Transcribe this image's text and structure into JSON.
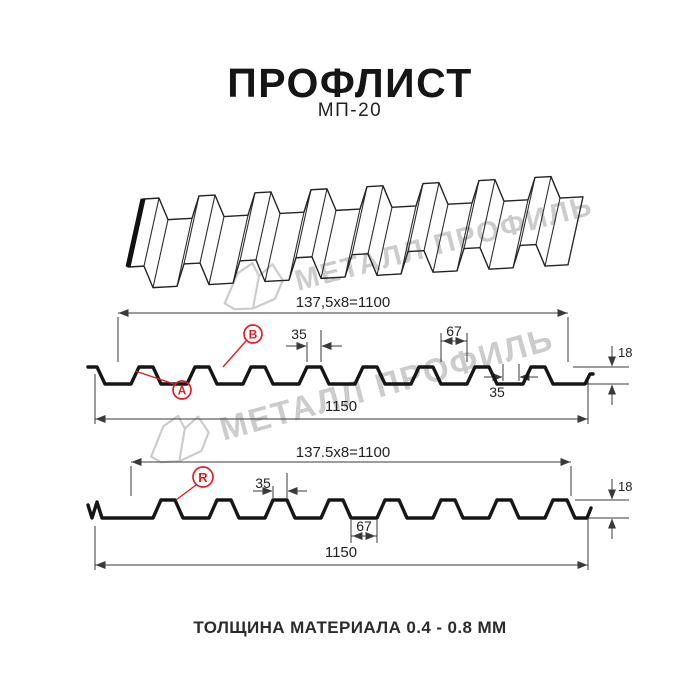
{
  "header": {
    "title": "ПРОФЛИСТ",
    "subtitle": "МП-20"
  },
  "footer": {
    "text": "ТОЛЩИНА МАТЕРИАЛА 0.4 - 0.8 ММ"
  },
  "watermark": {
    "text": "МЕТАЛЛ ПРОФИЛЬ"
  },
  "colors": {
    "accent_red": "#e31e24",
    "line_dark": "#161616",
    "line_thin": "#3a3a3a",
    "watermark_gray": "#cccccc"
  },
  "sections": [
    {
      "name": "perspective-view"
    },
    {
      "name": "cross-section-with-A-B",
      "dim_width_formula": "137,5x8=1100",
      "dim_rib_top": "35",
      "dim_flat": "67",
      "dim_height": "18",
      "dim_rib_bottom": "35",
      "dim_overall": "1150",
      "labels": [
        "A",
        "B"
      ]
    },
    {
      "name": "cross-section-with-R",
      "dim_width_formula": "137.5x8=1100",
      "dim_rib_top": "35",
      "dim_flat": "67",
      "dim_height": "18",
      "dim_overall": "1150",
      "labels": [
        "R"
      ]
    }
  ]
}
